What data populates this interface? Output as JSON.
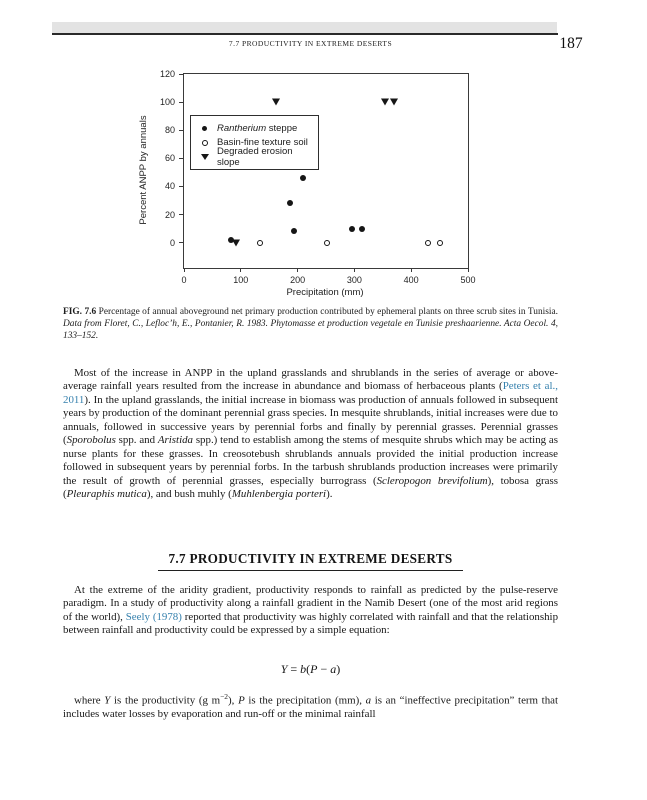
{
  "page": {
    "running_head": "7.7 PRODUCTIVITY IN EXTREME DESERTS",
    "page_number": "187"
  },
  "chart_data": {
    "type": "scatter",
    "xlabel": "Precipitation (mm)",
    "ylabel": "Percent ANPP by annuals",
    "xlim": [
      0,
      500
    ],
    "ylim": [
      -18,
      120
    ],
    "x_ticks": [
      0,
      100,
      200,
      300,
      400,
      500
    ],
    "y_ticks": [
      0,
      20,
      40,
      60,
      80,
      100,
      120
    ],
    "grid": false,
    "legend_position": "upper-left-inside",
    "series": [
      {
        "name": "Rantherium steppe",
        "marker": "filled-circle",
        "label_runs": [
          {
            "t": "Rantherium",
            "s": "italic"
          },
          {
            "t": " steppe",
            "s": "plain"
          }
        ],
        "points": [
          [
            82,
            2
          ],
          [
            186,
            28
          ],
          [
            194,
            8
          ],
          [
            209,
            46
          ],
          [
            296,
            10
          ],
          [
            314,
            10
          ]
        ]
      },
      {
        "name": "Basin-fine texture soil",
        "marker": "open-circle",
        "label_runs": [
          {
            "t": "Basin-fine texture soil",
            "s": "plain"
          }
        ],
        "points": [
          [
            133,
            0
          ],
          [
            252,
            0
          ],
          [
            430,
            0
          ],
          [
            450,
            0
          ]
        ]
      },
      {
        "name": "Degraded erosion slope",
        "marker": "filled-triangle-down",
        "label_runs": [
          {
            "t": "Degraded erosion slope",
            "s": "plain"
          }
        ],
        "points": [
          [
            92,
            0
          ],
          [
            162,
            100
          ],
          [
            354,
            100
          ],
          [
            369,
            100
          ]
        ]
      }
    ]
  },
  "figure": {
    "caption_runs": [
      {
        "t": "FIG. 7.6",
        "s": "bold"
      },
      {
        "t": "  Percentage of annual aboveground net primary production contributed by ephemeral plants on three scrub sites in Tunisia. ",
        "s": "plain"
      },
      {
        "t": "Data from Floret, C., Lefloc’h, E., Pontanier, R. 1983. Phytomasse et production vegetale en Tunisie preshaarienne. Acta Oecol. 4, 133–152.",
        "s": "italic"
      }
    ]
  },
  "sections": {
    "para1_runs": [
      {
        "t": "Most of the increase in ANPP in the upland grasslands and shrublands in the series of average or above-average rainfall years resulted from the increase in abundance and biomass of herbaceous plants (",
        "s": "plain"
      },
      {
        "t": "Peters et al., 2011",
        "s": "link"
      },
      {
        "t": "). In the upland grasslands, the initial increase in biomass was production of annuals followed in subsequent years by production of the dominant perennial grass species. In mesquite shrublands, initial increases were due to annuals, followed in successive years by perennial forbs and finally by perennial grasses. Perennial grasses (",
        "s": "plain"
      },
      {
        "t": "Sporobolus",
        "s": "italic"
      },
      {
        "t": " spp. and ",
        "s": "plain"
      },
      {
        "t": "Aristida",
        "s": "italic"
      },
      {
        "t": " spp.) tend to establish among the stems of mesquite shrubs which may be acting as nurse plants for these grasses. In creosotebush shrublands annuals provided the initial production increase followed in subsequent years by perennial forbs. In the tarbush shrublands production increases were primarily the result of growth of perennial grasses, especially burrograss (",
        "s": "plain"
      },
      {
        "t": "Scleropogon brevifolium",
        "s": "italic"
      },
      {
        "t": "), tobosa grass (",
        "s": "plain"
      },
      {
        "t": "Pleuraphis mutica",
        "s": "italic"
      },
      {
        "t": "), and bush muhly (",
        "s": "plain"
      },
      {
        "t": "Muhlenbergia porteri",
        "s": "italic"
      },
      {
        "t": ").",
        "s": "plain"
      }
    ],
    "heading": "7.7 PRODUCTIVITY IN EXTREME DESERTS",
    "para2_runs": [
      {
        "t": "At the extreme of the aridity gradient, productivity responds to rainfall as predicted by the pulse-reserve paradigm. In a study of productivity along a rainfall gradient in the Namib Desert (one of the most arid regions of the world), ",
        "s": "plain"
      },
      {
        "t": "Seely (1978)",
        "s": "link"
      },
      {
        "t": " reported that productivity was highly correlated with rainfall and that the relationship between rainfall and productivity could be expressed by a simple equation:",
        "s": "plain"
      }
    ],
    "equation_runs": [
      {
        "t": "Y",
        "s": "italic"
      },
      {
        "t": " = ",
        "s": "plain"
      },
      {
        "t": "b",
        "s": "italic"
      },
      {
        "t": "(",
        "s": "plain"
      },
      {
        "t": "P",
        "s": "italic"
      },
      {
        "t": " − ",
        "s": "plain"
      },
      {
        "t": "a",
        "s": "italic"
      },
      {
        "t": ")",
        "s": "plain"
      }
    ],
    "para3_runs": [
      {
        "t": "where ",
        "s": "plain"
      },
      {
        "t": "Y",
        "s": "italic"
      },
      {
        "t": " is the productivity (g m",
        "s": "plain"
      },
      {
        "t": "−2",
        "s": "sup"
      },
      {
        "t": "), ",
        "s": "plain"
      },
      {
        "t": "P",
        "s": "italic"
      },
      {
        "t": " is the precipitation (mm), ",
        "s": "plain"
      },
      {
        "t": "a",
        "s": "italic"
      },
      {
        "t": " is an “ineffective precipitation” term that includes water losses by evaporation and run-off or the minimal rainfall",
        "s": "plain"
      }
    ]
  },
  "colors": {
    "link": "#3580ad",
    "header_bar": "#e3e3e3",
    "marker": "#161616"
  }
}
